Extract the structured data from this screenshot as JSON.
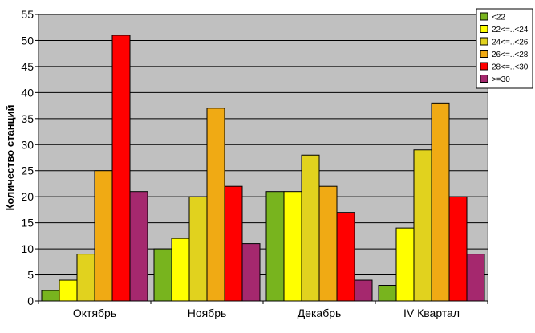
{
  "chart_data": {
    "type": "bar",
    "title": "",
    "xlabel": "",
    "ylabel": "Количество станций",
    "ylim": [
      0,
      55
    ],
    "ytick_step": 5,
    "grid": true,
    "legend_position": "top-right",
    "plot_background": "#c0c0c0",
    "categories": [
      "Октябрь",
      "Ноябрь",
      "Декабрь",
      "IV Квартал"
    ],
    "series": [
      {
        "name": "<22",
        "color": "#78b41e",
        "values": [
          2,
          10,
          21,
          3
        ]
      },
      {
        "name": "22<=..<24",
        "color": "#ffff00",
        "values": [
          4,
          12,
          21,
          14
        ]
      },
      {
        "name": "24<=..<26",
        "color": "#e1d21e",
        "values": [
          9,
          20,
          28,
          29
        ]
      },
      {
        "name": "26<=..<28",
        "color": "#f0aa14",
        "values": [
          25,
          37,
          22,
          38
        ]
      },
      {
        "name": "28<=..<30",
        "color": "#ff0000",
        "values": [
          51,
          22,
          17,
          20
        ]
      },
      {
        "name": ">=30",
        "color": "#a5286e",
        "values": [
          21,
          11,
          4,
          9
        ]
      }
    ]
  }
}
